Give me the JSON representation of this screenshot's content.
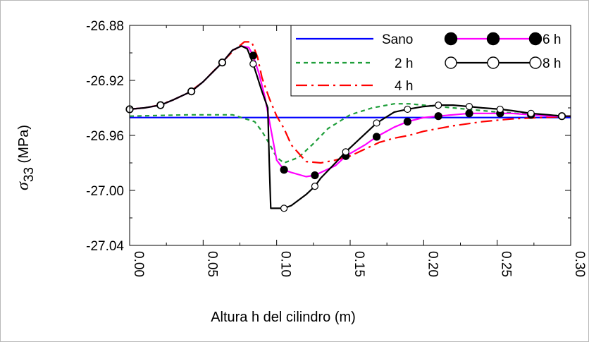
{
  "chart_data": {
    "type": "line",
    "title": "",
    "xlabel": "Altura h del cilindro (m)",
    "ylabel": {
      "symbol": "σ",
      "subscript": "33",
      "unit": " (MPa)"
    },
    "xlim": [
      0.0,
      0.3
    ],
    "ylim": [
      -27.04,
      -26.88
    ],
    "x_ticks": [
      0.0,
      0.05,
      0.1,
      0.15,
      0.2,
      0.25,
      0.3
    ],
    "x_tick_labels": [
      "0.00",
      "0.05",
      "0.10",
      "0.15",
      "0.20",
      "0.25",
      "0.30"
    ],
    "y_ticks": [
      -26.88,
      -26.92,
      -26.96,
      -27.0,
      -27.04
    ],
    "y_tick_labels": [
      "-26.88",
      "-26.92",
      "-26.96",
      "-27.00",
      "-27.04"
    ],
    "grid": false,
    "legend_position": "top-right",
    "series": [
      {
        "name": "Sano",
        "color": "#0000ff",
        "style": "solid",
        "marker": "none",
        "x": [
          0.0,
          0.3
        ],
        "y": [
          -26.947,
          -26.947
        ]
      },
      {
        "name": "2 h",
        "color": "#1f9e3a",
        "style": "dashed",
        "marker": "none",
        "x": [
          0.0,
          0.04,
          0.07,
          0.085,
          0.09,
          0.095,
          0.1,
          0.105,
          0.115,
          0.125,
          0.135,
          0.15,
          0.165,
          0.18,
          0.19,
          0.2,
          0.22,
          0.25,
          0.28,
          0.3
        ],
        "y": [
          -26.946,
          -26.945,
          -26.945,
          -26.95,
          -26.957,
          -26.966,
          -26.976,
          -26.98,
          -26.976,
          -26.966,
          -26.955,
          -26.945,
          -26.94,
          -26.937,
          -26.937,
          -26.938,
          -26.94,
          -26.943,
          -26.945,
          -26.946
        ]
      },
      {
        "name": "4 h",
        "color": "#ff0000",
        "style": "dashdot",
        "marker": "none",
        "x": [
          0.0,
          0.01,
          0.02,
          0.03,
          0.04,
          0.05,
          0.06,
          0.07,
          0.078,
          0.083,
          0.087,
          0.09,
          0.095,
          0.1,
          0.105,
          0.11,
          0.12,
          0.13,
          0.14,
          0.15,
          0.16,
          0.17,
          0.18,
          0.19,
          0.2,
          0.22,
          0.24,
          0.26,
          0.28,
          0.3
        ],
        "y": [
          -26.941,
          -26.94,
          -26.938,
          -26.934,
          -26.929,
          -26.921,
          -26.91,
          -26.899,
          -26.892,
          -26.892,
          -26.903,
          -26.918,
          -26.933,
          -26.946,
          -26.955,
          -26.967,
          -26.979,
          -26.98,
          -26.978,
          -26.975,
          -26.97,
          -26.965,
          -26.962,
          -26.96,
          -26.957,
          -26.953,
          -26.95,
          -26.948,
          -26.947,
          -26.946
        ]
      },
      {
        "name": "6 h",
        "color": "#ff00ff",
        "style": "solid",
        "marker": "filled-circle",
        "x": [
          0.0,
          0.01,
          0.021,
          0.03,
          0.042,
          0.05,
          0.063,
          0.07,
          0.076,
          0.081,
          0.084,
          0.088,
          0.092,
          0.096,
          0.1,
          0.105,
          0.11,
          0.12,
          0.126,
          0.13,
          0.14,
          0.147,
          0.16,
          0.168,
          0.18,
          0.189,
          0.2,
          0.21,
          0.22,
          0.231,
          0.24,
          0.252,
          0.26,
          0.273,
          0.285,
          0.294,
          0.3
        ],
        "y": [
          -26.941,
          -26.94,
          -26.938,
          -26.934,
          -26.928,
          -26.921,
          -26.907,
          -26.898,
          -26.895,
          -26.896,
          -26.902,
          -26.915,
          -26.932,
          -26.955,
          -26.978,
          -26.985,
          -26.987,
          -26.99,
          -26.989,
          -26.987,
          -26.982,
          -26.975,
          -26.967,
          -26.961,
          -26.954,
          -26.95,
          -26.947,
          -26.946,
          -26.945,
          -26.944,
          -26.944,
          -26.944,
          -26.944,
          -26.945,
          -26.946,
          -26.946,
          -26.946
        ],
        "marker_x": [
          0.0,
          0.021,
          0.042,
          0.063,
          0.084,
          0.105,
          0.126,
          0.147,
          0.168,
          0.189,
          0.21,
          0.231,
          0.252,
          0.273,
          0.294
        ],
        "marker_y": [
          -26.941,
          -26.938,
          -26.928,
          -26.907,
          -26.902,
          -26.985,
          -26.989,
          -26.975,
          -26.961,
          -26.95,
          -26.946,
          -26.944,
          -26.944,
          -26.945,
          -26.946
        ]
      },
      {
        "name": "8 h",
        "color": "#000000",
        "style": "solid",
        "marker": "open-circle",
        "x": [
          0.0,
          0.01,
          0.021,
          0.03,
          0.042,
          0.05,
          0.063,
          0.07,
          0.076,
          0.08,
          0.084,
          0.09,
          0.094,
          0.095,
          0.096,
          0.1,
          0.105,
          0.11,
          0.12,
          0.126,
          0.13,
          0.14,
          0.147,
          0.16,
          0.168,
          0.18,
          0.189,
          0.2,
          0.21,
          0.22,
          0.231,
          0.24,
          0.252,
          0.26,
          0.273,
          0.285,
          0.294,
          0.3
        ],
        "y": [
          -26.941,
          -26.94,
          -26.938,
          -26.934,
          -26.928,
          -26.921,
          -26.907,
          -26.898,
          -26.895,
          -26.897,
          -26.908,
          -26.928,
          -26.94,
          -26.98,
          -27.013,
          -27.013,
          -27.013,
          -27.011,
          -27.003,
          -26.997,
          -26.991,
          -26.98,
          -26.972,
          -26.959,
          -26.951,
          -26.943,
          -26.941,
          -26.939,
          -26.938,
          -26.938,
          -26.939,
          -26.94,
          -26.941,
          -26.942,
          -26.944,
          -26.945,
          -26.946,
          -26.946
        ],
        "marker_x": [
          0.0,
          0.021,
          0.042,
          0.063,
          0.084,
          0.105,
          0.126,
          0.147,
          0.168,
          0.189,
          0.21,
          0.231,
          0.252,
          0.273,
          0.294
        ],
        "marker_y": [
          -26.941,
          -26.938,
          -26.928,
          -26.907,
          -26.908,
          -27.013,
          -26.997,
          -26.972,
          -26.951,
          -26.941,
          -26.938,
          -26.939,
          -26.941,
          -26.944,
          -26.946
        ]
      }
    ]
  }
}
